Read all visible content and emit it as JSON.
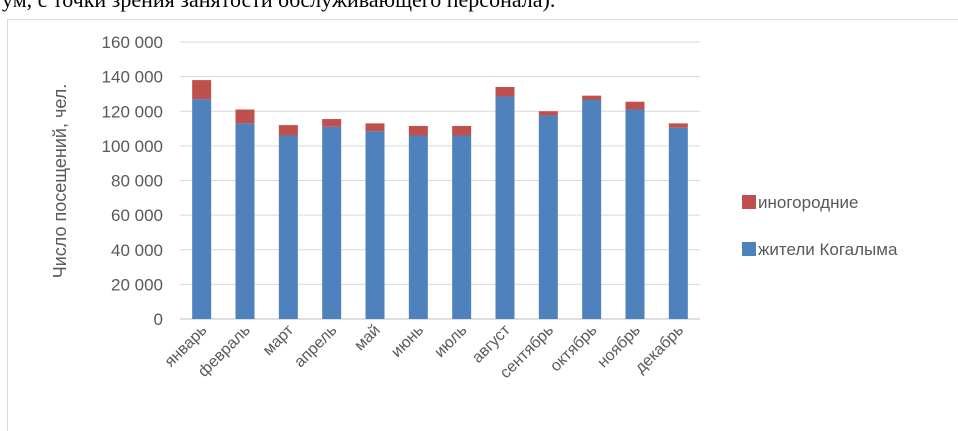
{
  "document": {
    "top_text": "ум, с точки зрения занятости обслуживающего персонала)."
  },
  "chart_data": {
    "type": "bar",
    "stacked": true,
    "categories": [
      "январь",
      "февраль",
      "март",
      "апрель",
      "май",
      "июнь",
      "июль",
      "август",
      "сентябрь",
      "октябрь",
      "ноябрь",
      "декабрь"
    ],
    "series": [
      {
        "name": "жители Когалыма",
        "color": "#4f81bd",
        "values": [
          127000,
          113000,
          106000,
          111000,
          108500,
          106000,
          106000,
          128500,
          117500,
          126500,
          121000,
          110500
        ]
      },
      {
        "name": "иногородние",
        "color": "#c0504d",
        "values": [
          11000,
          8000,
          6000,
          4500,
          4500,
          5500,
          5500,
          5500,
          2500,
          2500,
          4500,
          2500
        ]
      }
    ],
    "yticks": [
      "0",
      "20 000",
      "40 000",
      "60 000",
      "80 000",
      "100 000",
      "120 000",
      "140 000",
      "160 000"
    ],
    "ylabel": "Число посещений, чел.",
    "ylim": [
      0,
      160000
    ],
    "gridlines": true,
    "legend_position": "right"
  }
}
